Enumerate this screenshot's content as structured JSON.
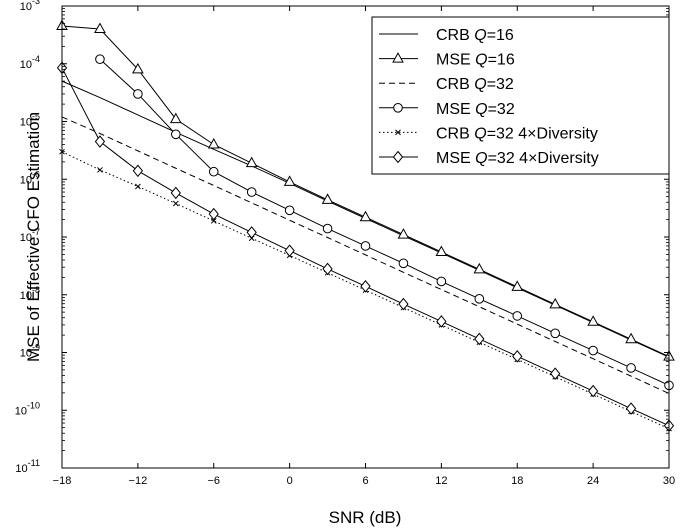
{
  "chart_data": {
    "type": "line",
    "xlabel": "SNR (dB)",
    "ylabel": "MSE of Effective CFO Estimation",
    "x_ticks": [
      "-18",
      "-12",
      "-6",
      "0",
      "6",
      "12",
      "18",
      "24",
      "30"
    ],
    "y_ticks": [
      {
        "base": "10",
        "exp": "-11"
      },
      {
        "base": "10",
        "exp": "-10"
      },
      {
        "base": "10",
        "exp": "-9"
      },
      {
        "base": "10",
        "exp": "-8"
      },
      {
        "base": "10",
        "exp": "-7"
      },
      {
        "base": "10",
        "exp": "-6"
      },
      {
        "base": "10",
        "exp": "-5"
      },
      {
        "base": "10",
        "exp": "-4"
      },
      {
        "base": "10",
        "exp": "-3"
      }
    ],
    "xlim": [
      -18,
      30
    ],
    "ylim": [
      1e-11,
      0.001
    ],
    "yscale": "log",
    "grid": false,
    "legend_position": "top-right",
    "x": [
      -18,
      -15,
      -12,
      -9,
      -6,
      -3,
      0,
      3,
      6,
      9,
      12,
      15,
      18,
      21,
      24,
      27,
      30
    ],
    "series": [
      {
        "legend_parts": [
          "CRB ",
          "Q",
          "=16"
        ],
        "line": "solid",
        "marker": "none",
        "values": [
          5e-05,
          2.6e-05,
          1.3e-05,
          6.5e-06,
          3.3e-06,
          1.7e-06,
          8.5e-07,
          4.2e-07,
          2.1e-07,
          1.05e-07,
          5.3e-08,
          2.65e-08,
          1.32e-08,
          6.6e-09,
          3.3e-09,
          1.65e-09,
          8.3e-10
        ]
      },
      {
        "legend_parts": [
          "MSE ",
          "Q",
          "=16"
        ],
        "line": "solid",
        "marker": "triangle",
        "values": [
          0.00045,
          0.0004,
          8e-05,
          1.1e-05,
          4e-06,
          1.9e-06,
          9e-07,
          4.4e-07,
          2.2e-07,
          1.1e-07,
          5.5e-08,
          2.75e-08,
          1.37e-08,
          6.8e-09,
          3.4e-09,
          1.7e-09,
          8.5e-10
        ]
      },
      {
        "legend_parts": [
          "CRB ",
          "Q",
          "=32"
        ],
        "line": "dashed",
        "marker": "none",
        "values": [
          1.2e-05,
          6.2e-06,
          3.1e-06,
          1.55e-06,
          7.8e-07,
          3.9e-07,
          1.95e-07,
          9.8e-08,
          4.9e-08,
          2.45e-08,
          1.23e-08,
          6.2e-09,
          3.1e-09,
          1.55e-09,
          7.8e-10,
          3.9e-10,
          1.95e-10
        ]
      },
      {
        "legend_parts": [
          "MSE ",
          "Q",
          "=32"
        ],
        "line": "solid",
        "marker": "circle",
        "x": [
          -15,
          -12,
          -9,
          -6,
          -3,
          0,
          3,
          6,
          9,
          12,
          15,
          18,
          21,
          24,
          27,
          30
        ],
        "values": [
          0.00012,
          3e-05,
          6e-06,
          1.35e-06,
          6e-07,
          2.9e-07,
          1.4e-07,
          7e-08,
          3.5e-08,
          1.7e-08,
          8.5e-09,
          4.3e-09,
          2.15e-09,
          1.08e-09,
          5.4e-10,
          2.7e-10
        ]
      },
      {
        "legend_parts": [
          "CRB ",
          "Q",
          "=32 4×Diversity"
        ],
        "line": "dotted",
        "marker": "x",
        "values": [
          3e-06,
          1.45e-06,
          7.5e-07,
          3.8e-07,
          1.9e-07,
          9.5e-08,
          4.8e-08,
          2.4e-08,
          1.2e-08,
          6e-09,
          3e-09,
          1.5e-09,
          7.6e-10,
          3.8e-10,
          1.9e-10,
          9.5e-11,
          4.8e-11
        ]
      },
      {
        "legend_parts": [
          "MSE ",
          "Q",
          "=32 4×Diversity"
        ],
        "line": "solid",
        "marker": "diamond",
        "values": [
          8.5e-05,
          4.5e-06,
          1.4e-06,
          5.8e-07,
          2.5e-07,
          1.2e-07,
          5.8e-08,
          2.8e-08,
          1.4e-08,
          6.9e-09,
          3.45e-09,
          1.72e-09,
          8.6e-10,
          4.3e-10,
          2.15e-10,
          1.07e-10,
          5.4e-11
        ]
      }
    ]
  }
}
